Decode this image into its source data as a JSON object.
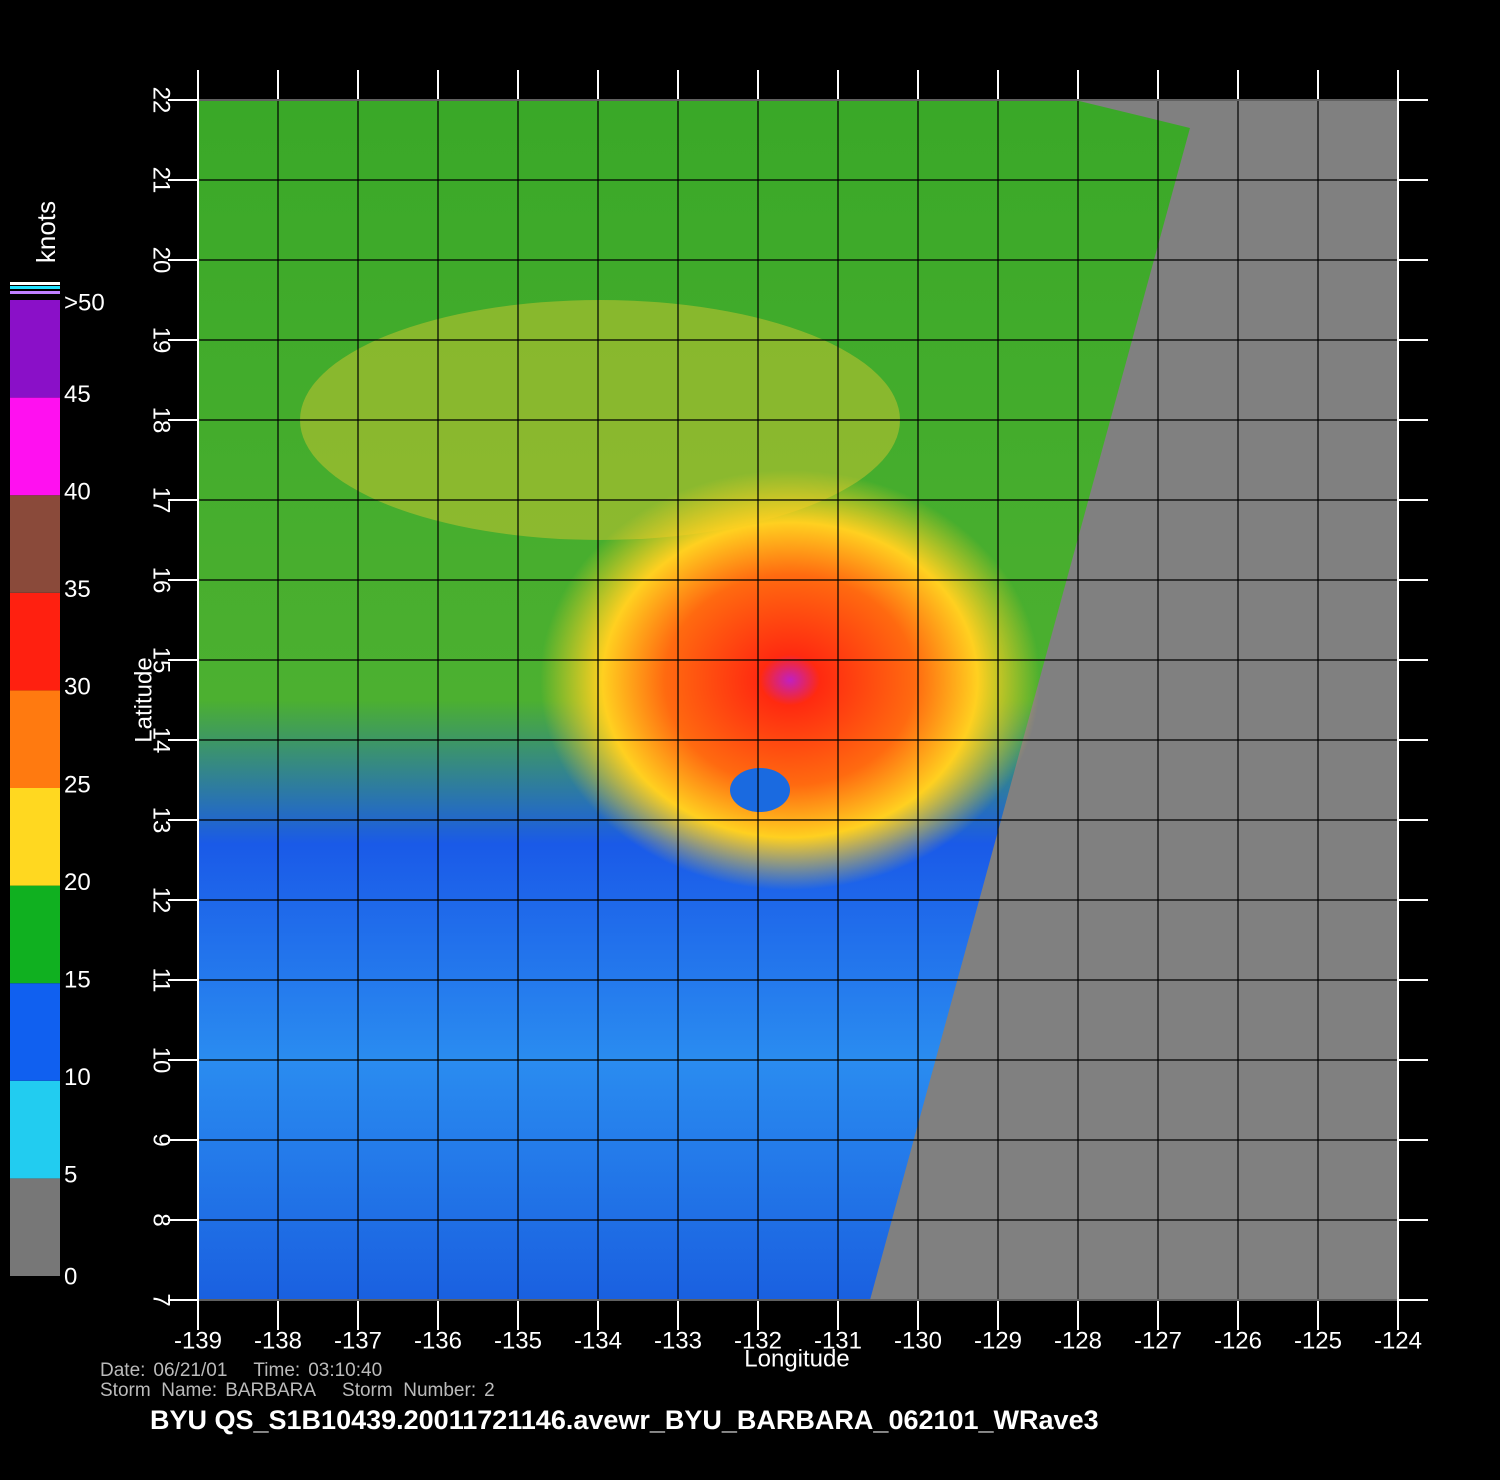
{
  "title": "BYU  QS_S1B10439.20011721146.avewr_BYU_BARBARA_062101_WRave3",
  "info": {
    "date_label": "Date:",
    "date": "06/21/01",
    "time_label": "Time:",
    "time": "03:10:40",
    "storm_name_label": "Storm  Name:",
    "storm_name": "BARBARA",
    "storm_number_label": "Storm  Number:",
    "storm_number": "2"
  },
  "x_axis": {
    "label": "Longitude",
    "lim": [
      -139,
      -124
    ],
    "ticks": [
      -139,
      -138,
      -137,
      -136,
      -135,
      -134,
      -133,
      -132,
      -131,
      -130,
      -129,
      -128,
      -127,
      -126,
      -125,
      -124
    ]
  },
  "y_axis": {
    "label": "Latitude",
    "lim": [
      7,
      22
    ],
    "ticks": [
      7,
      8,
      9,
      10,
      11,
      12,
      13,
      14,
      15,
      16,
      17,
      18,
      19,
      20,
      21,
      22
    ]
  },
  "colorbar": {
    "label": "knots",
    "lim": [
      0,
      50
    ],
    "ticks": [
      0,
      5,
      10,
      15,
      20,
      25,
      30,
      35,
      40,
      45,
      {
        "value": 50,
        "label": ">50"
      }
    ],
    "colors": [
      "#777777",
      "#22ccf0",
      "#1060f0",
      "#10b020",
      "#ffd820",
      "#ff7a10",
      "#ff2010",
      "#8a4a3a",
      "#ff10f0",
      "#8a10c8"
    ]
  }
}
